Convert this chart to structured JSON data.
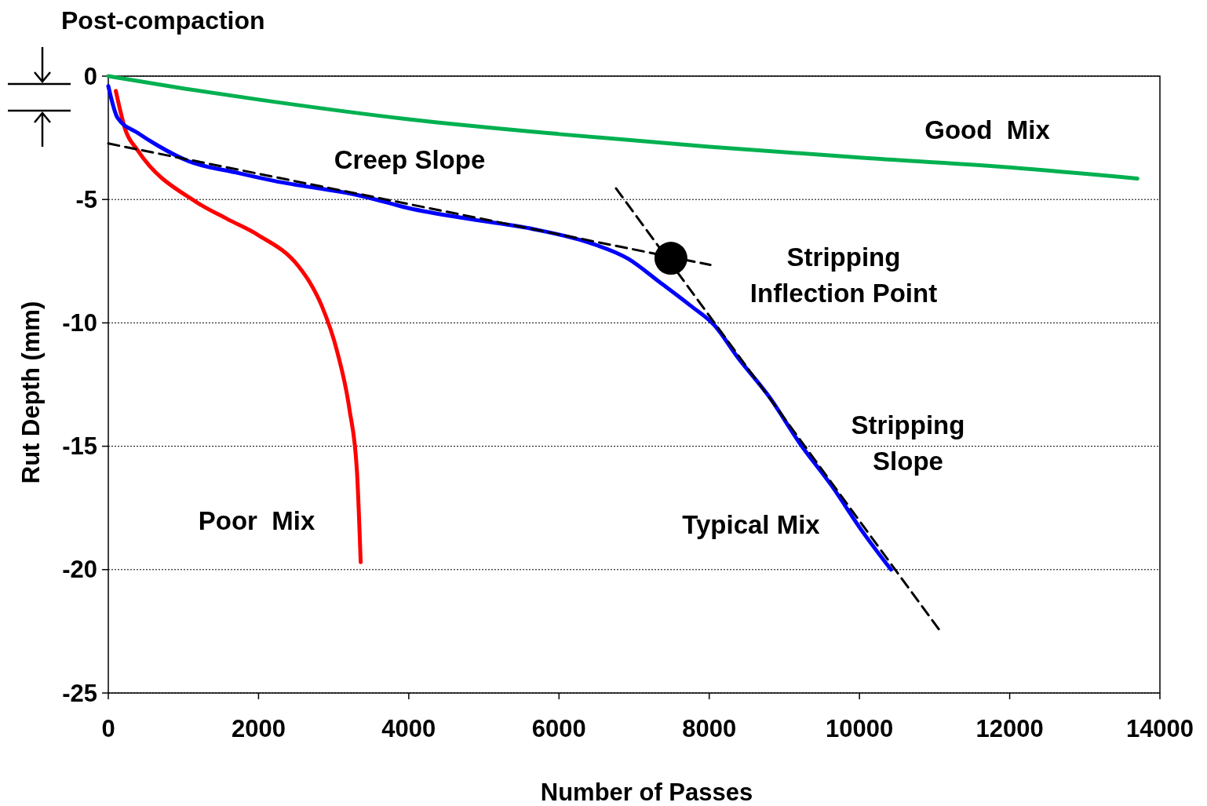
{
  "chart_data": {
    "type": "line",
    "xlabel": "Number of Passes",
    "ylabel": "Rut Depth (mm)",
    "xlim": [
      0,
      14000
    ],
    "xticks": [
      0,
      2000,
      4000,
      6000,
      8000,
      10000,
      12000,
      14000
    ],
    "ylim": [
      -25,
      0
    ],
    "yticks": [
      -25,
      -20,
      -15,
      -10,
      -5,
      0
    ],
    "grid": "y",
    "series": [
      {
        "color": "#00b050",
        "x": [
          0,
          1000,
          2000,
          4000,
          6000,
          8000,
          10000,
          12000,
          13700
        ],
        "values": [
          0,
          -0.5,
          -0.95,
          -1.75,
          -2.35,
          -2.86,
          -3.3,
          -3.7,
          -4.15
        ]
      },
      {
        "color": "#ff0000",
        "x": [
          100,
          230,
          390,
          1170,
          1590,
          2000,
          2530,
          2690,
          2840,
          3050,
          3210,
          3310,
          3360
        ],
        "values": [
          -0.6,
          -2.2,
          -3.0,
          -5.1,
          -5.8,
          -6.45,
          -7.7,
          -8.4,
          -9.3,
          -11.2,
          -13.5,
          -16,
          -19.7
        ]
      },
      {
        "color": "#0000ff",
        "x": [
          0,
          125,
          390,
          650,
          1070,
          1690,
          2215,
          3360,
          4000,
          4830,
          5660,
          6400,
          6920,
          7340,
          7750,
          8070,
          8380,
          8800,
          9210,
          9630,
          10050,
          10420
        ],
        "values": [
          -0.4,
          -1.7,
          -2.3,
          -2.8,
          -3.45,
          -3.9,
          -4.25,
          -4.85,
          -5.35,
          -5.8,
          -6.2,
          -6.75,
          -7.4,
          -8.35,
          -9.3,
          -10.1,
          -11.4,
          -13,
          -14.9,
          -16.6,
          -18.5,
          -20
        ]
      },
      {
        "color": "#000000",
        "line_style": "dashed",
        "x": [
          0,
          8015
        ],
        "values": [
          -2.73,
          -7.65
        ]
      },
      {
        "color": "#000000",
        "line_style": "dashed",
        "x": [
          6760,
          11065
        ],
        "values": [
          -4.55,
          -22.45
        ]
      },
      {
        "type": "scatter",
        "marker": "circle",
        "color": "#000000",
        "x": [
          7490
        ],
        "values": [
          -7.38
        ]
      }
    ],
    "annotations": [
      "Post-compaction",
      "Good  Mix",
      "Creep Slope",
      "Stripping\nInflection Point",
      "Stripping\nSlope",
      "Typical Mix",
      "Poor  Mix"
    ]
  }
}
